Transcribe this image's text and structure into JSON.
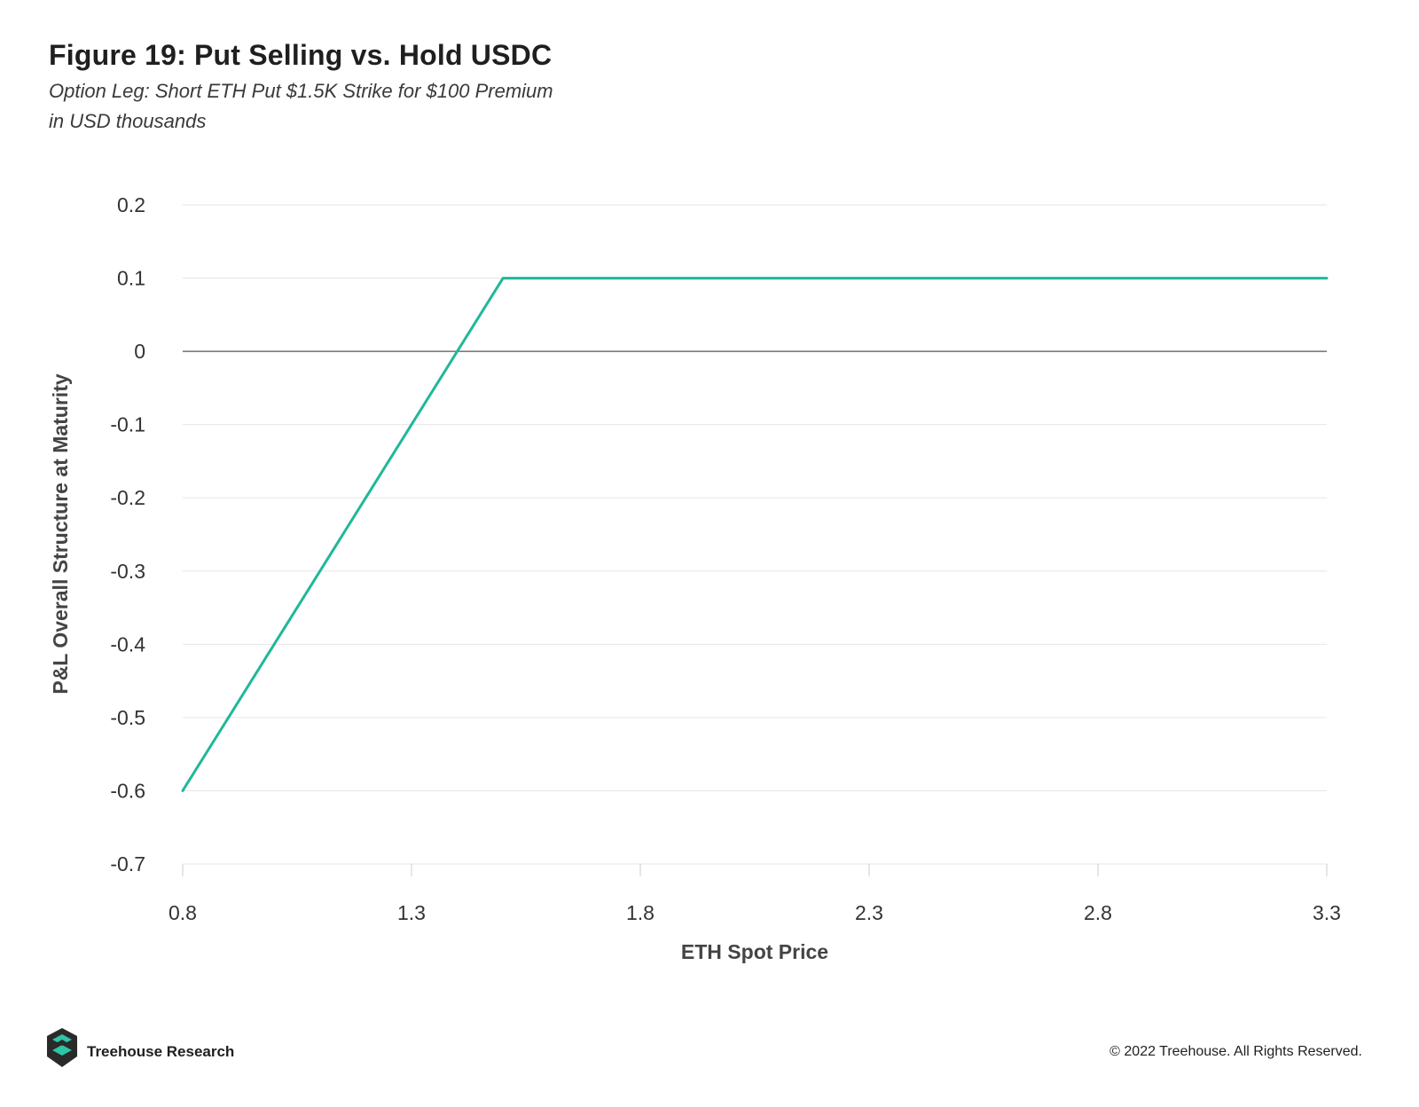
{
  "header": {
    "title": "Figure 19: Put Selling vs. Hold USDC",
    "subtitle_line1": "Option Leg: Short ETH Put $1.5K Strike for $100 Premium",
    "subtitle_line2": "in USD thousands"
  },
  "footer": {
    "brand": "Treehouse Research",
    "copyright": "© 2022 Treehouse. All Rights Reserved.",
    "logo_icon": "treehouse-logo-icon"
  },
  "colors": {
    "series_line": "#1fb89a",
    "grid": "#e6e6e6",
    "zero_line": "#555555",
    "axis_text": "#333333",
    "logo_dark": "#2a2a2a",
    "logo_accent": "#2ec4a6"
  },
  "chart_data": {
    "type": "line",
    "xlabel": "ETH Spot Price",
    "ylabel": "P&L Overall Structure at Maturity",
    "xlim": [
      0.8,
      3.3
    ],
    "ylim": [
      -0.7,
      0.2
    ],
    "x_ticks": [
      0.8,
      1.3,
      1.8,
      2.3,
      2.8,
      3.3
    ],
    "x_tick_labels": [
      "0.8",
      "1.3",
      "1.8",
      "2.3",
      "2.8",
      "3.3"
    ],
    "y_ticks": [
      0.2,
      0.1,
      0,
      -0.1,
      -0.2,
      -0.3,
      -0.4,
      -0.5,
      -0.6,
      -0.7
    ],
    "y_tick_labels": [
      "0.2",
      "0.1",
      "0",
      "-0.1",
      "-0.2",
      "-0.3",
      "-0.4",
      "-0.5",
      "-0.6",
      "-0.7"
    ],
    "grid": true,
    "legend": false,
    "series": [
      {
        "x": [
          0.8,
          0.9,
          1.0,
          1.1,
          1.2,
          1.3,
          1.4,
          1.5,
          1.6,
          1.8,
          2.0,
          2.2,
          2.4,
          2.6,
          2.8,
          3.0,
          3.2,
          3.3
        ],
        "values": [
          -0.6,
          -0.5,
          -0.4,
          -0.3,
          -0.2,
          -0.1,
          0.0,
          0.1,
          0.1,
          0.1,
          0.1,
          0.1,
          0.1,
          0.1,
          0.1,
          0.1,
          0.1,
          0.1
        ]
      }
    ]
  }
}
